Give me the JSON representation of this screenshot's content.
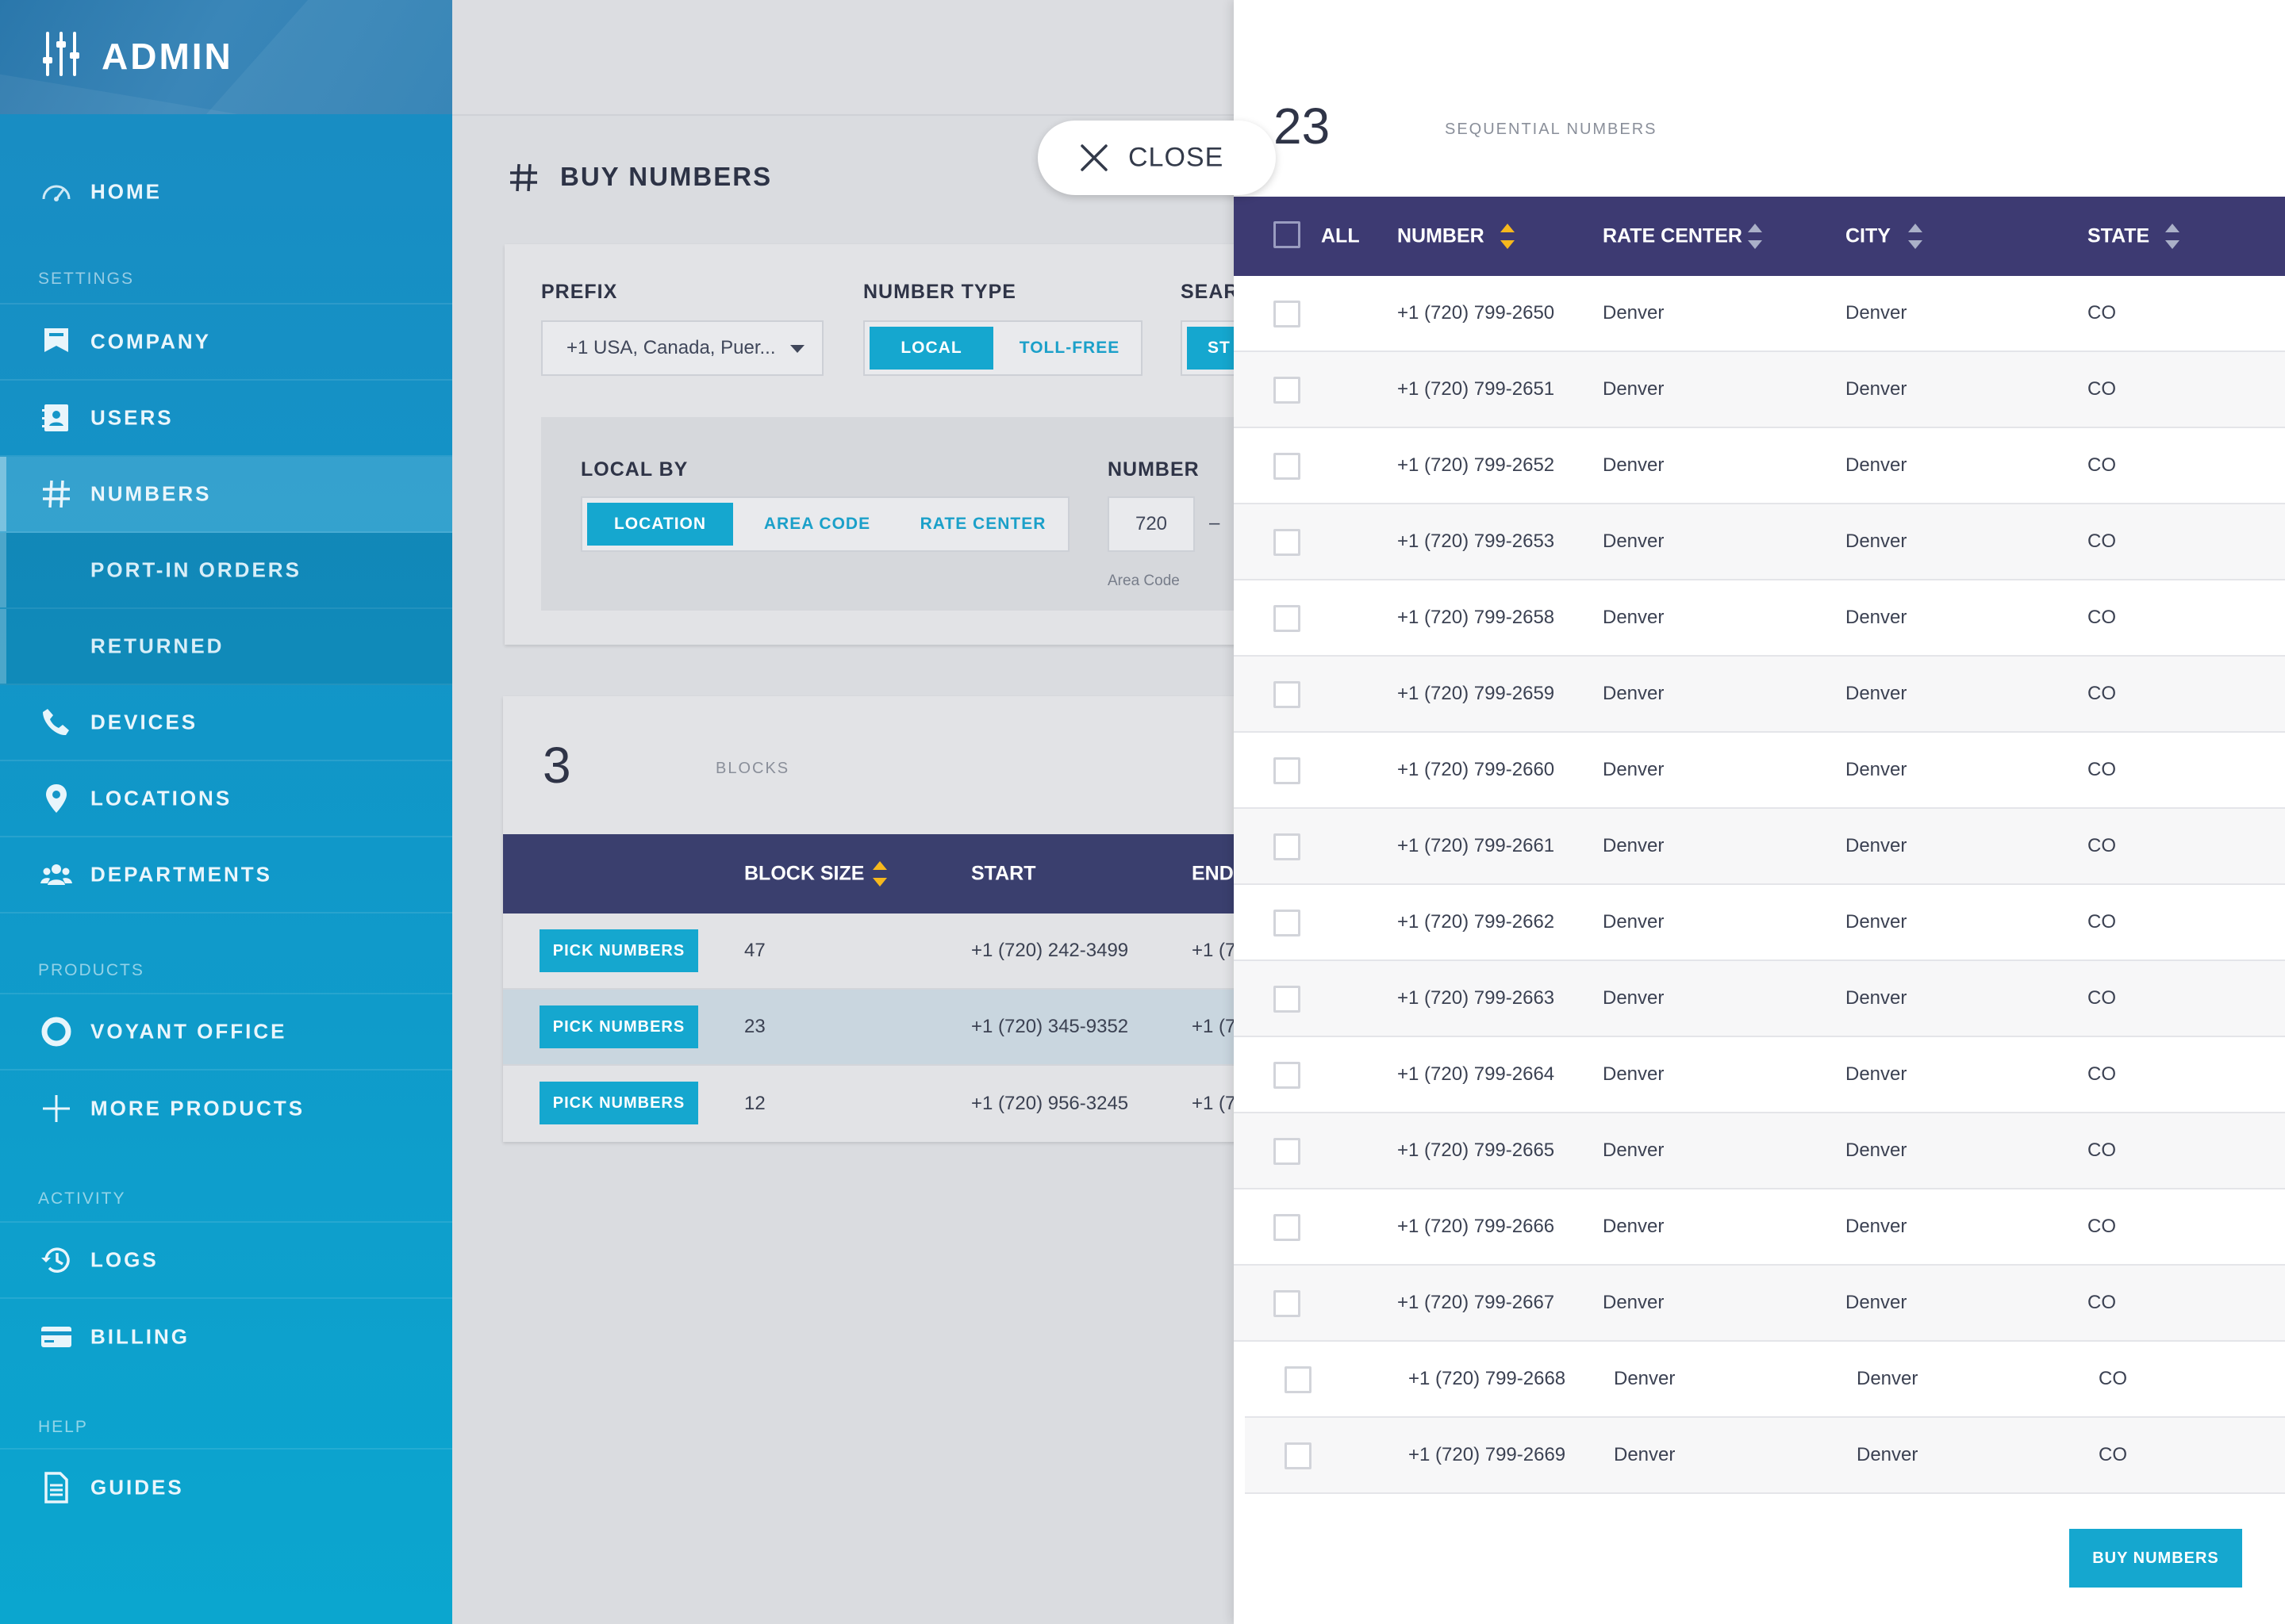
{
  "app": {
    "title": "ADMIN"
  },
  "sidebar": {
    "home": "HOME",
    "sections": {
      "settings": "SETTINGS",
      "products": "PRODUCTS",
      "activity": "ACTIVITY",
      "help": "HELP"
    },
    "items": {
      "company": "COMPANY",
      "users": "USERS",
      "numbers": "NUMBERS",
      "port_in_orders": "PORT-IN ORDERS",
      "returned": "RETURNED",
      "devices": "DEVICES",
      "locations": "LOCATIONS",
      "departments": "DEPARTMENTS",
      "voyant_office": "VOYANT OFFICE",
      "more_products": "MORE PRODUCTS",
      "logs": "LOGS",
      "billing": "BILLING",
      "guides": "GUIDES"
    }
  },
  "page": {
    "title": "BUY NUMBERS"
  },
  "search_form": {
    "prefix_label": "PREFIX",
    "prefix_value": "+1 USA, Canada, Puer...",
    "number_type_label": "NUMBER TYPE",
    "number_type_options": [
      "LOCAL",
      "TOLL-FREE"
    ],
    "number_type_selected": "LOCAL",
    "search_label": "SEARC",
    "search_option_partial": "ST",
    "local_by_label": "LOCAL BY",
    "local_by_options": [
      "LOCATION",
      "AREA CODE",
      "RATE CENTER"
    ],
    "local_by_selected": "LOCATION",
    "number_label": "NUMBER",
    "area_code_value": "720",
    "dash": "–",
    "area_code_hint": "Area Code"
  },
  "blocks": {
    "count": "3",
    "count_label": "BLOCKS",
    "columns": {
      "block_size": "BLOCK SIZE",
      "start": "START",
      "end": "END"
    },
    "pick_label": "PICK NUMBERS",
    "rows": [
      {
        "size": "47",
        "start": "+1 (720) 242-3499",
        "end": "+1 (7"
      },
      {
        "size": "23",
        "start": "+1 (720) 345-9352",
        "end": "+1 (7"
      },
      {
        "size": "12",
        "start": "+1 (720) 956-3245",
        "end": "+1 (7"
      }
    ]
  },
  "close_button": {
    "label": "CLOSE"
  },
  "drawer": {
    "count": "23",
    "count_label": "SEQUENTIAL NUMBERS",
    "columns": {
      "all": "ALL",
      "number": "NUMBER",
      "rate_center": "RATE CENTER",
      "city": "CITY",
      "state": "STATE"
    },
    "rows": [
      {
        "number": "+1 (720) 799-2650",
        "rate_center": "Denver",
        "city": "Denver",
        "state": "CO"
      },
      {
        "number": "+1 (720) 799-2651",
        "rate_center": "Denver",
        "city": "Denver",
        "state": "CO"
      },
      {
        "number": "+1 (720) 799-2652",
        "rate_center": "Denver",
        "city": "Denver",
        "state": "CO"
      },
      {
        "number": "+1 (720) 799-2653",
        "rate_center": "Denver",
        "city": "Denver",
        "state": "CO"
      },
      {
        "number": "+1 (720) 799-2658",
        "rate_center": "Denver",
        "city": "Denver",
        "state": "CO"
      },
      {
        "number": "+1 (720) 799-2659",
        "rate_center": "Denver",
        "city": "Denver",
        "state": "CO"
      },
      {
        "number": "+1 (720) 799-2660",
        "rate_center": "Denver",
        "city": "Denver",
        "state": "CO"
      },
      {
        "number": "+1 (720) 799-2661",
        "rate_center": "Denver",
        "city": "Denver",
        "state": "CO"
      },
      {
        "number": "+1 (720) 799-2662",
        "rate_center": "Denver",
        "city": "Denver",
        "state": "CO"
      },
      {
        "number": "+1 (720) 799-2663",
        "rate_center": "Denver",
        "city": "Denver",
        "state": "CO"
      },
      {
        "number": "+1 (720) 799-2664",
        "rate_center": "Denver",
        "city": "Denver",
        "state": "CO"
      },
      {
        "number": "+1 (720) 799-2665",
        "rate_center": "Denver",
        "city": "Denver",
        "state": "CO"
      },
      {
        "number": "+1 (720) 799-2666",
        "rate_center": "Denver",
        "city": "Denver",
        "state": "CO"
      },
      {
        "number": "+1 (720) 799-2667",
        "rate_center": "Denver",
        "city": "Denver",
        "state": "CO"
      },
      {
        "number": "+1 (720) 799-2668",
        "rate_center": "Denver",
        "city": "Denver",
        "state": "CO"
      },
      {
        "number": "+1 (720) 799-2669",
        "rate_center": "Denver",
        "city": "Denver",
        "state": "CO"
      }
    ],
    "buy_label": "BUY NUMBERS"
  },
  "colors": {
    "accent": "#15a7cf",
    "header": "#3d3a72",
    "sort_active": "#f6b81d"
  }
}
